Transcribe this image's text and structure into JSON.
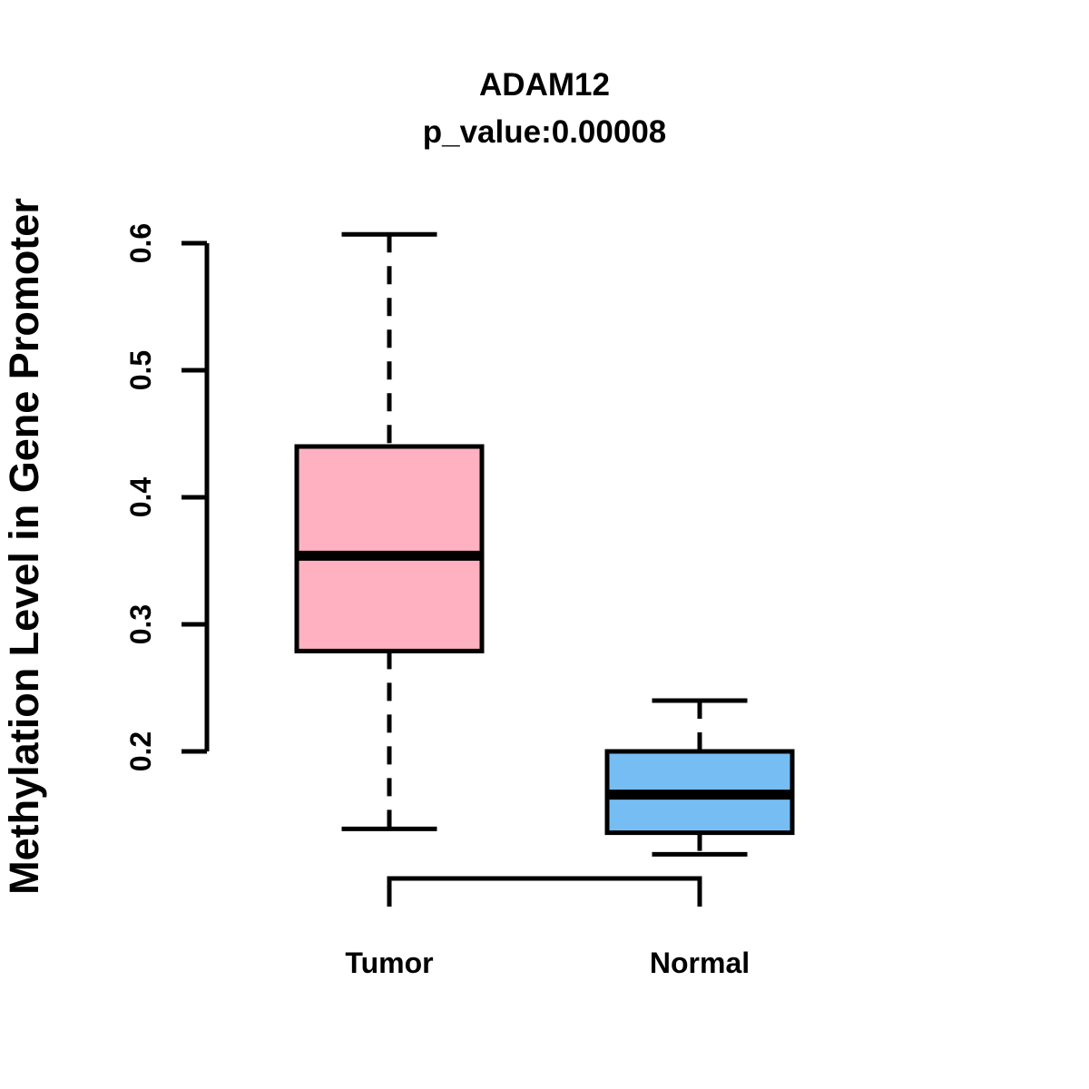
{
  "chart_data": {
    "type": "boxplot",
    "title": "ADAM12",
    "subtitle": "p_value:0.00008",
    "ylabel": "Methylation Level in Gene Promoter",
    "xlabel": "",
    "yticks": [
      0.2,
      0.3,
      0.4,
      0.5,
      0.6
    ],
    "ytick_labels": [
      "0.2",
      "0.3",
      "0.4",
      "0.5",
      "0.6"
    ],
    "y_axis_range_drawn": [
      0.2,
      0.6
    ],
    "grid": false,
    "legend": "none",
    "groups": [
      {
        "label": "Tumor",
        "fill_color": "#FFB1C1",
        "whisker_low": 0.139,
        "q1": 0.279,
        "median": 0.354,
        "q3": 0.44,
        "whisker_high": 0.607
      },
      {
        "label": "Normal",
        "fill_color": "#76BDF3",
        "whisker_low": 0.119,
        "q1": 0.136,
        "median": 0.166,
        "q3": 0.2,
        "whisker_high": 0.24
      }
    ],
    "colors": {
      "box_border": "#000000",
      "median_line": "#000000",
      "axis": "#000000",
      "text": "#000000",
      "background": "#FFFFFF"
    },
    "whisker_style": "dashed"
  }
}
